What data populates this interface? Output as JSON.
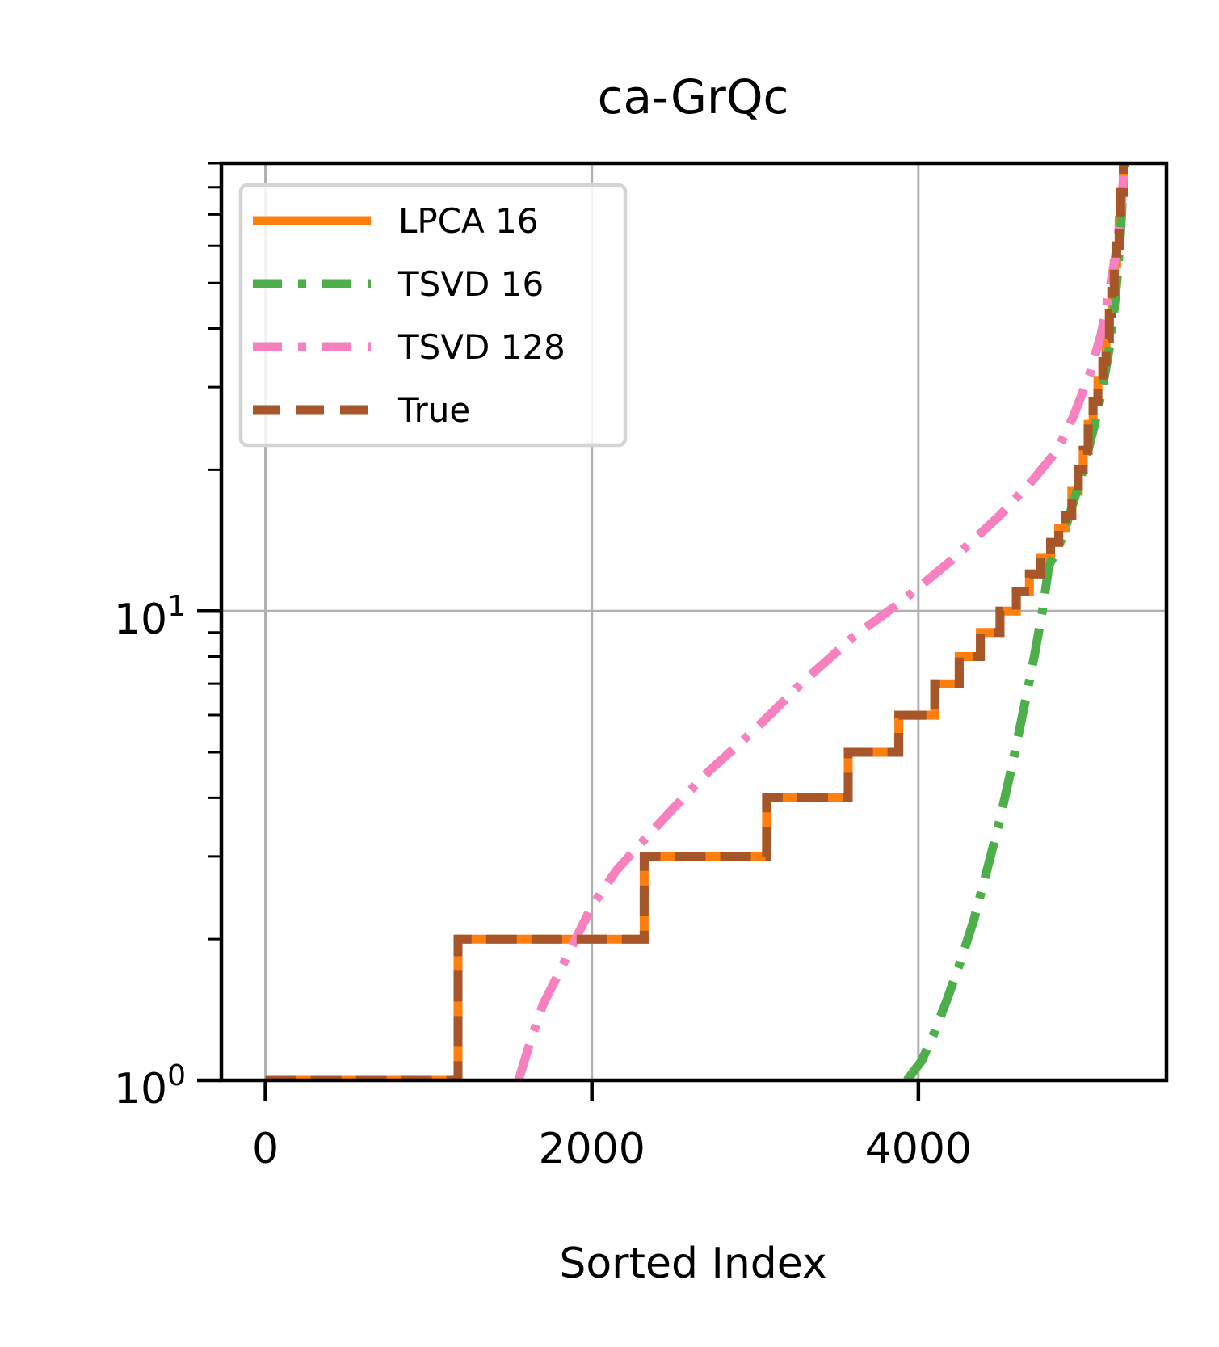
{
  "chart_data": {
    "type": "line",
    "title": "ca-GrQc",
    "xlabel": "Sorted Index",
    "ylabel": "",
    "xlim": [
      -270,
      5520
    ],
    "ylim": [
      1,
      90
    ],
    "yscale": "log",
    "grid": true,
    "legend_position": "top-left",
    "x_ticks": [
      0,
      2000,
      4000
    ],
    "x_tick_labels": [
      "0",
      "2000",
      "4000"
    ],
    "y_ticks": [
      1,
      10
    ],
    "y_tick_labels": [
      {
        "base": "10",
        "exp": "0"
      },
      {
        "base": "10",
        "exp": "1"
      }
    ],
    "series": [
      {
        "name": "LPCA 16",
        "color": "#ff7f0e",
        "style": "solid",
        "step": true,
        "x": [
          0,
          1180,
          1180,
          2320,
          2320,
          3070,
          3070,
          3570,
          3570,
          3880,
          3880,
          4100,
          4100,
          4250,
          4250,
          4380,
          4380,
          4500,
          4500,
          4600,
          4600,
          4680,
          4680,
          4750,
          4750,
          4810,
          4810,
          4860,
          4860,
          4900,
          4900,
          4940,
          4940,
          4980,
          4980,
          5010,
          5010,
          5040,
          5040,
          5070,
          5070,
          5100,
          5100,
          5130,
          5130,
          5150,
          5150,
          5170,
          5170,
          5185,
          5185,
          5200,
          5200,
          5215,
          5215,
          5230,
          5230,
          5240,
          5240,
          5255,
          5255,
          5262
        ],
        "y": [
          1,
          1,
          2,
          2,
          3,
          3,
          4,
          4,
          5,
          5,
          6,
          6,
          7,
          7,
          8,
          8,
          9,
          9,
          10,
          10,
          11,
          11,
          12,
          12,
          13,
          13,
          14,
          14,
          15,
          15,
          16,
          16,
          18,
          18,
          20,
          20,
          22,
          22,
          25,
          25,
          28,
          28,
          31,
          31,
          34,
          34,
          38,
          38,
          43,
          43,
          48,
          48,
          55,
          55,
          60,
          60,
          68,
          68,
          78,
          78,
          90,
          90
        ]
      },
      {
        "name": "TSVD 16",
        "color": "#4daf4a",
        "style": "dashdot",
        "step": false,
        "x": [
          3930,
          4020,
          4100,
          4180,
          4260,
          4340,
          4420,
          4500,
          4580,
          4650,
          4710,
          4760,
          4800,
          4840,
          4880,
          4920,
          4960,
          5000,
          5040,
          5080,
          5120,
          5150,
          5180,
          5200,
          5220,
          5240,
          5262
        ],
        "y": [
          1.0,
          1.1,
          1.27,
          1.5,
          1.8,
          2.2,
          2.8,
          3.6,
          4.8,
          6.3,
          8.0,
          10.0,
          12.5,
          13.3,
          14.3,
          15.8,
          17.5,
          19.5,
          22.0,
          25.0,
          29.0,
          33.0,
          38.0,
          44.0,
          52.0,
          65.0,
          90.0
        ]
      },
      {
        "name": "TSVD 128",
        "color": "#f781bf",
        "style": "dashdot",
        "step": false,
        "x": [
          1550,
          1620,
          1700,
          1800,
          1900,
          2000,
          2150,
          2300,
          2500,
          2700,
          3000,
          3300,
          3600,
          3900,
          4200,
          4500,
          4700,
          4850,
          4950,
          5050,
          5120,
          5170,
          5210,
          5240,
          5262
        ],
        "y": [
          1.0,
          1.2,
          1.45,
          1.7,
          2.0,
          2.35,
          2.8,
          3.2,
          3.8,
          4.5,
          5.6,
          7.1,
          8.8,
          10.5,
          12.8,
          16.0,
          19.0,
          22.0,
          26.0,
          32.0,
          39.0,
          48.0,
          58.0,
          70.0,
          90.0
        ]
      },
      {
        "name": "True",
        "color": "#a65628",
        "style": "dashed",
        "step": true,
        "x": [
          0,
          1180,
          1180,
          2320,
          2320,
          3070,
          3070,
          3570,
          3570,
          3880,
          3880,
          4100,
          4100,
          4250,
          4250,
          4380,
          4380,
          4500,
          4500,
          4600,
          4600,
          4680,
          4680,
          4750,
          4750,
          4810,
          4810,
          4860,
          4860,
          4900,
          4900,
          4940,
          4940,
          4980,
          4980,
          5010,
          5010,
          5040,
          5040,
          5070,
          5070,
          5100,
          5100,
          5130,
          5130,
          5150,
          5150,
          5170,
          5170,
          5185,
          5185,
          5200,
          5200,
          5215,
          5215,
          5230,
          5230,
          5240,
          5240,
          5255,
          5255,
          5262
        ],
        "y": [
          1,
          1,
          2,
          2,
          3,
          3,
          4,
          4,
          5,
          5,
          6,
          6,
          7,
          7,
          8,
          8,
          9,
          9,
          10,
          10,
          11,
          11,
          12,
          12,
          13,
          13,
          14,
          14,
          15,
          15,
          16,
          16,
          18,
          18,
          20,
          20,
          22,
          22,
          25,
          25,
          28,
          28,
          31,
          31,
          34,
          34,
          38,
          38,
          43,
          43,
          48,
          48,
          55,
          55,
          60,
          60,
          68,
          68,
          78,
          78,
          90,
          90
        ]
      }
    ]
  }
}
